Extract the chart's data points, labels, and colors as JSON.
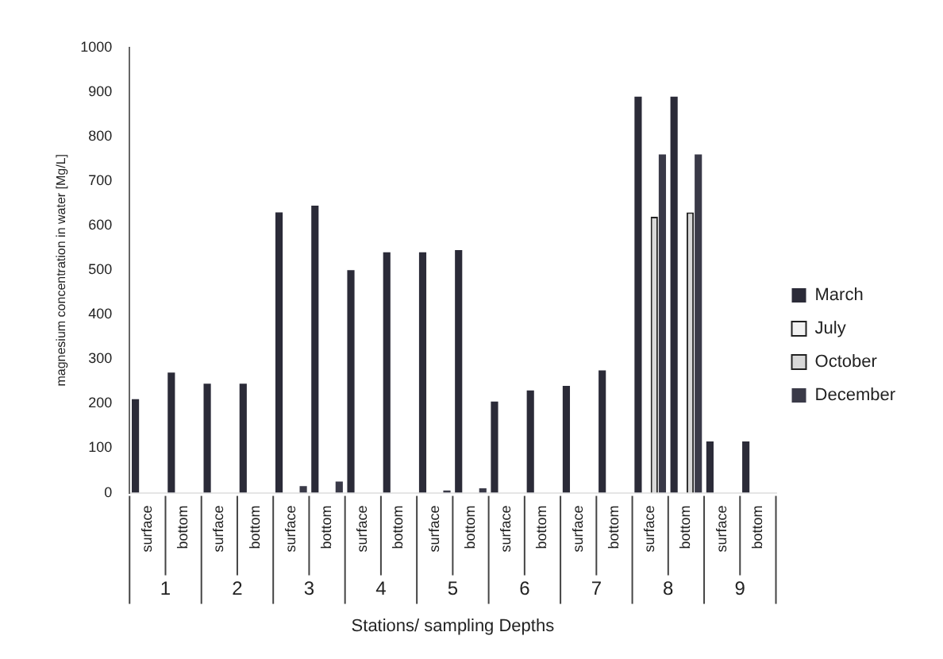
{
  "chart_data": {
    "type": "bar",
    "xlabel": "Stations/ sampling Depths",
    "ylabel": "magnesium concentration in water [Mg/L]",
    "categories": [
      "surface",
      "bottom",
      "surface",
      "bottom",
      "surface",
      "bottom",
      "surface",
      "bottom",
      "surface",
      "bottom",
      "surface",
      "bottom",
      "surface",
      "bottom",
      "surface",
      "bottom",
      "surface",
      "bottom"
    ],
    "annotations": [
      "1",
      "2",
      "3",
      "4",
      "5",
      "6",
      "7",
      "8",
      "9"
    ],
    "series": [
      {
        "name": "March",
        "color": "#2b2b38",
        "values": [
          210,
          270,
          245,
          245,
          630,
          645,
          500,
          540,
          540,
          545,
          205,
          230,
          240,
          275,
          890,
          890,
          115,
          115
        ]
      },
      {
        "name": "July",
        "color": "#f2f2f2",
        "values": [
          null,
          null,
          null,
          null,
          null,
          null,
          null,
          null,
          null,
          null,
          null,
          null,
          null,
          null,
          null,
          null,
          null,
          null
        ]
      },
      {
        "name": "October",
        "color": "#d8d8d8",
        "values": [
          null,
          null,
          null,
          null,
          null,
          null,
          null,
          null,
          null,
          null,
          null,
          null,
          null,
          null,
          620,
          630,
          null,
          null
        ]
      },
      {
        "name": "December",
        "color": "#3a3a48",
        "values": [
          null,
          null,
          null,
          null,
          15,
          25,
          null,
          null,
          5,
          10,
          null,
          null,
          null,
          null,
          760,
          760,
          null,
          null
        ]
      }
    ],
    "ylim": [
      0,
      1000
    ],
    "yticks": [
      0,
      100,
      200,
      300,
      400,
      500,
      600,
      700,
      800,
      900,
      1000
    ],
    "grid": false,
    "legend": "right"
  }
}
